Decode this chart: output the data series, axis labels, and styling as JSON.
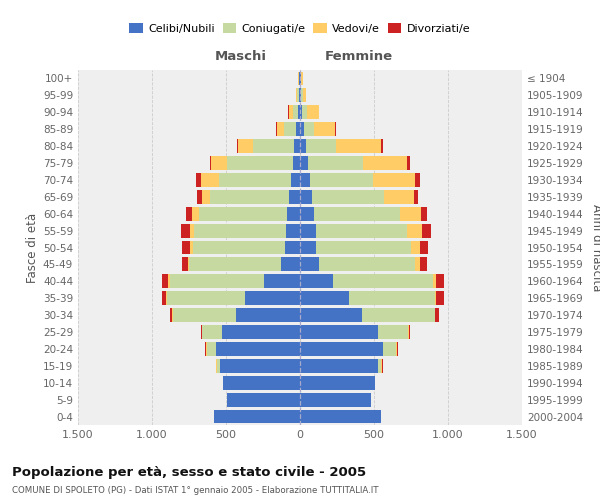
{
  "age_groups": [
    "0-4",
    "5-9",
    "10-14",
    "15-19",
    "20-24",
    "25-29",
    "30-34",
    "35-39",
    "40-44",
    "45-49",
    "50-54",
    "55-59",
    "60-64",
    "65-69",
    "70-74",
    "75-79",
    "80-84",
    "85-89",
    "90-94",
    "95-99",
    "100+"
  ],
  "birth_years": [
    "2000-2004",
    "1995-1999",
    "1990-1994",
    "1985-1989",
    "1980-1984",
    "1975-1979",
    "1970-1974",
    "1965-1969",
    "1960-1964",
    "1955-1959",
    "1950-1954",
    "1945-1949",
    "1940-1944",
    "1935-1939",
    "1930-1934",
    "1925-1929",
    "1920-1924",
    "1915-1919",
    "1910-1914",
    "1905-1909",
    "≤ 1904"
  ],
  "colors": {
    "celibi": "#4472C4",
    "coniugati": "#C5D9A0",
    "vedovi": "#FFCC66",
    "divorziati": "#CC2222"
  },
  "maschi": {
    "celibi": [
      580,
      490,
      520,
      540,
      570,
      530,
      430,
      370,
      240,
      130,
      100,
      95,
      90,
      75,
      60,
      50,
      40,
      25,
      15,
      8,
      5
    ],
    "coniugati": [
      0,
      0,
      0,
      20,
      60,
      130,
      430,
      530,
      640,
      620,
      620,
      620,
      590,
      530,
      490,
      440,
      280,
      80,
      30,
      10,
      5
    ],
    "vedovi": [
      0,
      0,
      0,
      5,
      5,
      5,
      5,
      5,
      10,
      10,
      20,
      30,
      50,
      60,
      120,
      110,
      100,
      50,
      30,
      10,
      5
    ],
    "divorziati": [
      0,
      0,
      0,
      5,
      5,
      5,
      15,
      30,
      40,
      40,
      55,
      60,
      40,
      30,
      30,
      10,
      5,
      5,
      5,
      0,
      0
    ]
  },
  "femmine": {
    "nubili": [
      550,
      480,
      510,
      530,
      560,
      530,
      420,
      330,
      220,
      130,
      110,
      105,
      95,
      80,
      65,
      55,
      40,
      25,
      15,
      8,
      5
    ],
    "coniugate": [
      0,
      0,
      0,
      20,
      90,
      200,
      490,
      580,
      680,
      650,
      640,
      620,
      580,
      490,
      430,
      370,
      200,
      70,
      30,
      10,
      5
    ],
    "vedove": [
      0,
      0,
      0,
      5,
      5,
      5,
      5,
      10,
      20,
      30,
      60,
      100,
      140,
      200,
      280,
      300,
      310,
      140,
      80,
      20,
      10
    ],
    "divorziate": [
      0,
      0,
      0,
      5,
      5,
      10,
      25,
      50,
      55,
      45,
      55,
      60,
      45,
      30,
      35,
      20,
      10,
      5,
      5,
      0,
      0
    ]
  },
  "xlim": 1500,
  "title": "Popolazione per età, sesso e stato civile - 2005",
  "subtitle": "COMUNE DI SPOLETO (PG) - Dati ISTAT 1° gennaio 2005 - Elaborazione TUTTITALIA.IT",
  "maschi_label": "Maschi",
  "femmine_label": "Femmine",
  "ylabel_left": "Fasce di età",
  "ylabel_right": "Anni di nascita",
  "legend_labels": [
    "Celibi/Nubili",
    "Coniugati/e",
    "Vedovi/e",
    "Divorziati/e"
  ],
  "bg_color": "#efefef",
  "grid_color": "#cccccc"
}
